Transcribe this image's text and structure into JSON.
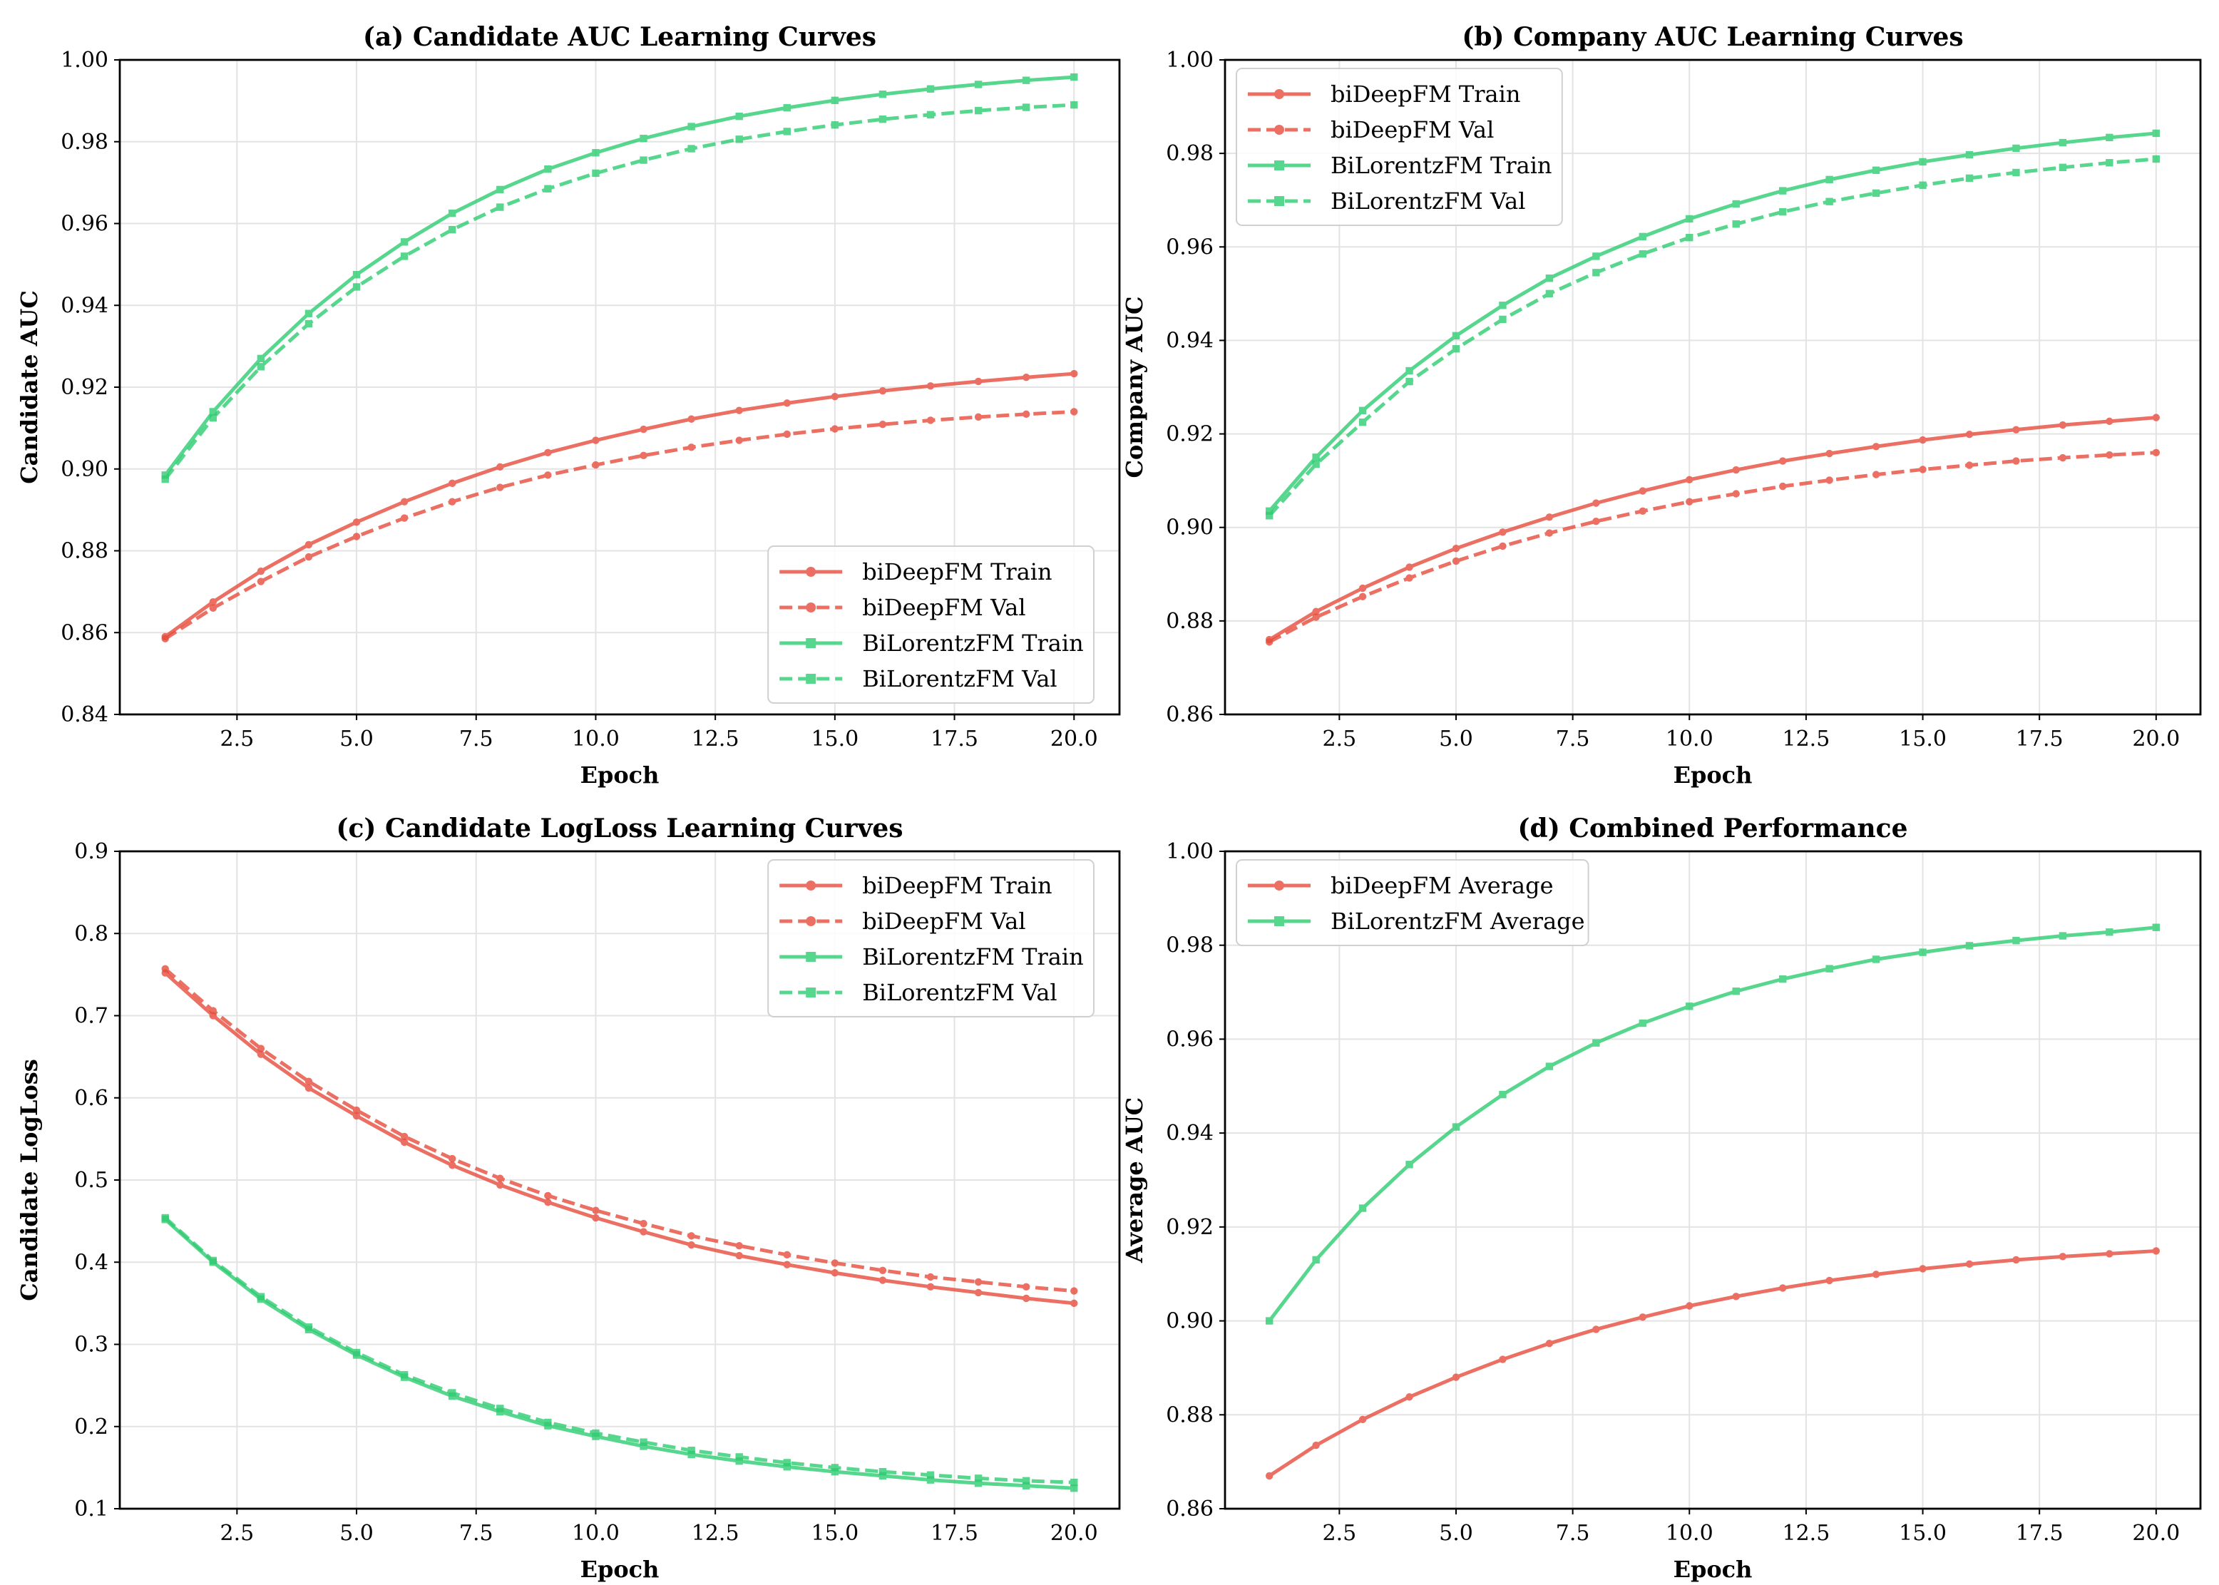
{
  "colors": {
    "biDeepFM": "#e74c3c",
    "BiLorentzFM": "#2ecc71"
  },
  "chart_data": [
    {
      "type": "line",
      "title": "(a) Candidate AUC Learning Curves",
      "xlabel": "Epoch",
      "ylabel": "Candidate AUC",
      "xlim": [
        0.05,
        20.95
      ],
      "ylim": [
        0.84,
        1.0
      ],
      "xticks": [
        2.5,
        5.0,
        7.5,
        10.0,
        12.5,
        15.0,
        17.5,
        20.0
      ],
      "xtick_labels": [
        "2.5",
        "5.0",
        "7.5",
        "10.0",
        "12.5",
        "15.0",
        "17.5",
        "20.0"
      ],
      "yticks": [
        0.84,
        0.86,
        0.88,
        0.9,
        0.92,
        0.94,
        0.96,
        0.98,
        1.0
      ],
      "ytick_labels": [
        "0.84",
        "0.86",
        "0.88",
        "0.90",
        "0.92",
        "0.94",
        "0.96",
        "0.98",
        "1.00"
      ],
      "grid": true,
      "legend": "bottom-right",
      "x": [
        1,
        2,
        3,
        4,
        5,
        6,
        7,
        8,
        9,
        10,
        11,
        12,
        13,
        14,
        15,
        16,
        17,
        18,
        19,
        20
      ],
      "series": [
        {
          "name": "biDeepFM Train",
          "model": "biDeepFM",
          "style": "solid",
          "marker": "circle",
          "values": [
            0.859,
            0.8675,
            0.875,
            0.8815,
            0.887,
            0.892,
            0.8965,
            0.9005,
            0.904,
            0.907,
            0.9097,
            0.9122,
            0.9143,
            0.9161,
            0.9177,
            0.9191,
            0.9203,
            0.9214,
            0.9224,
            0.9233
          ]
        },
        {
          "name": "biDeepFM Val",
          "model": "biDeepFM",
          "style": "dashed",
          "marker": "circle",
          "values": [
            0.8585,
            0.866,
            0.8725,
            0.8785,
            0.8835,
            0.888,
            0.892,
            0.8955,
            0.8985,
            0.901,
            0.9033,
            0.9053,
            0.907,
            0.9085,
            0.9098,
            0.9109,
            0.9119,
            0.9127,
            0.9134,
            0.914
          ]
        },
        {
          "name": "BiLorentzFM Train",
          "model": "BiLorentzFM",
          "style": "solid",
          "marker": "square",
          "values": [
            0.8985,
            0.914,
            0.927,
            0.938,
            0.9475,
            0.9555,
            0.9625,
            0.9683,
            0.9733,
            0.9773,
            0.9808,
            0.9837,
            0.9862,
            0.9883,
            0.9901,
            0.9916,
            0.9929,
            0.994,
            0.995,
            0.9958
          ]
        },
        {
          "name": "BiLorentzFM Val",
          "model": "BiLorentzFM",
          "style": "dashed",
          "marker": "square",
          "values": [
            0.8975,
            0.9125,
            0.925,
            0.9355,
            0.9445,
            0.952,
            0.9585,
            0.964,
            0.9685,
            0.9723,
            0.9755,
            0.9783,
            0.9806,
            0.9825,
            0.9841,
            0.9855,
            0.9866,
            0.9876,
            0.9884,
            0.989
          ]
        }
      ]
    },
    {
      "type": "line",
      "title": "(b) Company AUC Learning Curves",
      "xlabel": "Epoch",
      "ylabel": "Company AUC",
      "xlim": [
        0.05,
        20.95
      ],
      "ylim": [
        0.86,
        1.0
      ],
      "xticks": [
        2.5,
        5.0,
        7.5,
        10.0,
        12.5,
        15.0,
        17.5,
        20.0
      ],
      "xtick_labels": [
        "2.5",
        "5.0",
        "7.5",
        "10.0",
        "12.5",
        "15.0",
        "17.5",
        "20.0"
      ],
      "yticks": [
        0.86,
        0.88,
        0.9,
        0.92,
        0.94,
        0.96,
        0.98,
        1.0
      ],
      "ytick_labels": [
        "0.86",
        "0.88",
        "0.90",
        "0.92",
        "0.94",
        "0.96",
        "0.98",
        "1.00"
      ],
      "grid": true,
      "legend": "top-left",
      "x": [
        1,
        2,
        3,
        4,
        5,
        6,
        7,
        8,
        9,
        10,
        11,
        12,
        13,
        14,
        15,
        16,
        17,
        18,
        19,
        20
      ],
      "series": [
        {
          "name": "biDeepFM Train",
          "model": "biDeepFM",
          "style": "solid",
          "marker": "circle",
          "values": [
            0.876,
            0.882,
            0.887,
            0.8915,
            0.8955,
            0.899,
            0.9022,
            0.9052,
            0.9078,
            0.9102,
            0.9123,
            0.9142,
            0.9158,
            0.9173,
            0.9187,
            0.9199,
            0.9209,
            0.9219,
            0.9227,
            0.9235
          ]
        },
        {
          "name": "biDeepFM Val",
          "model": "biDeepFM",
          "style": "dashed",
          "marker": "circle",
          "values": [
            0.8755,
            0.8808,
            0.8852,
            0.8892,
            0.8928,
            0.896,
            0.8988,
            0.9013,
            0.9035,
            0.9055,
            0.9072,
            0.9088,
            0.9101,
            0.9113,
            0.9124,
            0.9133,
            0.9142,
            0.9149,
            0.9155,
            0.916
          ]
        },
        {
          "name": "BiLorentzFM Train",
          "model": "BiLorentzFM",
          "style": "solid",
          "marker": "square",
          "values": [
            0.9035,
            0.915,
            0.925,
            0.9335,
            0.941,
            0.9475,
            0.9533,
            0.958,
            0.9622,
            0.966,
            0.9692,
            0.972,
            0.9744,
            0.9764,
            0.9782,
            0.9797,
            0.9811,
            0.9823,
            0.9834,
            0.9843
          ]
        },
        {
          "name": "BiLorentzFM Val",
          "model": "BiLorentzFM",
          "style": "dashed",
          "marker": "square",
          "values": [
            0.9025,
            0.9135,
            0.9225,
            0.9312,
            0.9382,
            0.9445,
            0.95,
            0.9545,
            0.9585,
            0.962,
            0.9649,
            0.9675,
            0.9697,
            0.9715,
            0.9732,
            0.9747,
            0.9759,
            0.977,
            0.978,
            0.9788
          ]
        }
      ]
    },
    {
      "type": "line",
      "title": "(c) Candidate LogLoss Learning Curves",
      "xlabel": "Epoch",
      "ylabel": "Candidate LogLoss",
      "xlim": [
        0.05,
        20.95
      ],
      "ylim": [
        0.1,
        0.9
      ],
      "xticks": [
        2.5,
        5.0,
        7.5,
        10.0,
        12.5,
        15.0,
        17.5,
        20.0
      ],
      "xtick_labels": [
        "2.5",
        "5.0",
        "7.5",
        "10.0",
        "12.5",
        "15.0",
        "17.5",
        "20.0"
      ],
      "yticks": [
        0.1,
        0.2,
        0.3,
        0.4,
        0.5,
        0.6,
        0.7,
        0.8,
        0.9
      ],
      "ytick_labels": [
        "0.1",
        "0.2",
        "0.3",
        "0.4",
        "0.5",
        "0.6",
        "0.7",
        "0.8",
        "0.9"
      ],
      "grid": true,
      "legend": "top-right",
      "x": [
        1,
        2,
        3,
        4,
        5,
        6,
        7,
        8,
        9,
        10,
        11,
        12,
        13,
        14,
        15,
        16,
        17,
        18,
        19,
        20
      ],
      "series": [
        {
          "name": "biDeepFM Train",
          "model": "biDeepFM",
          "style": "solid",
          "marker": "circle",
          "values": [
            0.752,
            0.7,
            0.653,
            0.612,
            0.578,
            0.546,
            0.518,
            0.494,
            0.473,
            0.454,
            0.437,
            0.421,
            0.408,
            0.397,
            0.387,
            0.378,
            0.37,
            0.363,
            0.356,
            0.35
          ]
        },
        {
          "name": "biDeepFM Val",
          "model": "biDeepFM",
          "style": "dashed",
          "marker": "circle",
          "values": [
            0.757,
            0.706,
            0.66,
            0.62,
            0.585,
            0.553,
            0.526,
            0.502,
            0.481,
            0.463,
            0.447,
            0.432,
            0.42,
            0.409,
            0.399,
            0.39,
            0.382,
            0.376,
            0.37,
            0.365
          ]
        },
        {
          "name": "BiLorentzFM Train",
          "model": "BiLorentzFM",
          "style": "solid",
          "marker": "square",
          "values": [
            0.452,
            0.4,
            0.355,
            0.318,
            0.287,
            0.26,
            0.237,
            0.218,
            0.201,
            0.188,
            0.176,
            0.166,
            0.158,
            0.151,
            0.145,
            0.14,
            0.135,
            0.131,
            0.128,
            0.125
          ]
        },
        {
          "name": "BiLorentzFM Val",
          "model": "BiLorentzFM",
          "style": "dashed",
          "marker": "square",
          "values": [
            0.454,
            0.402,
            0.358,
            0.321,
            0.29,
            0.263,
            0.241,
            0.222,
            0.205,
            0.192,
            0.181,
            0.171,
            0.163,
            0.156,
            0.15,
            0.145,
            0.141,
            0.137,
            0.134,
            0.132
          ]
        }
      ]
    },
    {
      "type": "line",
      "title": "(d) Combined Performance",
      "xlabel": "Epoch",
      "ylabel": "Average AUC",
      "xlim": [
        0.05,
        20.95
      ],
      "ylim": [
        0.86,
        1.0
      ],
      "xticks": [
        2.5,
        5.0,
        7.5,
        10.0,
        12.5,
        15.0,
        17.5,
        20.0
      ],
      "xtick_labels": [
        "2.5",
        "5.0",
        "7.5",
        "10.0",
        "12.5",
        "15.0",
        "17.5",
        "20.0"
      ],
      "yticks": [
        0.86,
        0.88,
        0.9,
        0.92,
        0.94,
        0.96,
        0.98,
        1.0
      ],
      "ytick_labels": [
        "0.86",
        "0.88",
        "0.90",
        "0.92",
        "0.94",
        "0.96",
        "0.98",
        "1.00"
      ],
      "grid": true,
      "legend": "top-left",
      "x": [
        1,
        2,
        3,
        4,
        5,
        6,
        7,
        8,
        9,
        10,
        11,
        12,
        13,
        14,
        15,
        16,
        17,
        18,
        19,
        20
      ],
      "series": [
        {
          "name": "biDeepFM Average",
          "model": "biDeepFM",
          "style": "solid",
          "marker": "circle",
          "values": [
            0.867,
            0.8735,
            0.879,
            0.8838,
            0.888,
            0.8918,
            0.8952,
            0.8982,
            0.9008,
            0.9032,
            0.9052,
            0.907,
            0.9086,
            0.9099,
            0.9111,
            0.9121,
            0.913,
            0.9137,
            0.9143,
            0.9149
          ]
        },
        {
          "name": "BiLorentzFM Average",
          "model": "BiLorentzFM",
          "style": "solid",
          "marker": "square",
          "values": [
            0.9,
            0.913,
            0.924,
            0.9333,
            0.9413,
            0.9482,
            0.9542,
            0.9592,
            0.9634,
            0.967,
            0.9702,
            0.9728,
            0.975,
            0.977,
            0.9785,
            0.9799,
            0.981,
            0.982,
            0.9828,
            0.9838
          ]
        }
      ]
    }
  ]
}
